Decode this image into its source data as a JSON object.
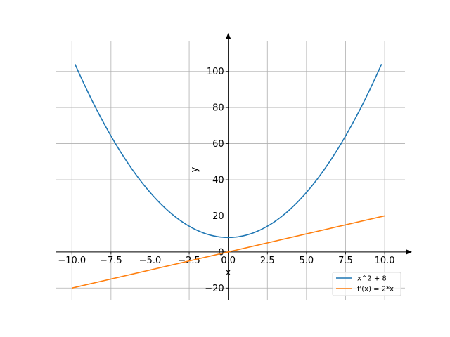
{
  "chart_data": {
    "type": "line",
    "xlabel": "x",
    "ylabel": "y",
    "xlim": [
      -11.0,
      11.3
    ],
    "ylim": [
      -26.5,
      117
    ],
    "grid": true,
    "legend_position": "bottom-right",
    "x_ticks": [
      -10.0,
      -7.5,
      -5.0,
      -2.5,
      0.0,
      2.5,
      5.0,
      7.5,
      10.0
    ],
    "x_tick_labels": [
      "−10.0",
      "−7.5",
      "−5.0",
      "−2.5",
      "0.0",
      "2.5",
      "5.0",
      "7.5",
      "10.0"
    ],
    "y_ticks": [
      -20,
      0,
      20,
      40,
      60,
      80,
      100
    ],
    "y_tick_labels": [
      "−20",
      "0",
      "20",
      "40",
      "60",
      "80",
      "100"
    ],
    "series": [
      {
        "name": "x^2 + 8",
        "color": "#1f77b4",
        "x": [
          -9.8,
          -9.0,
          -8.0,
          -7.0,
          -6.0,
          -5.0,
          -4.0,
          -3.0,
          -2.0,
          -1.0,
          0.0,
          1.0,
          2.0,
          3.0,
          4.0,
          5.0,
          6.0,
          7.0,
          8.0,
          9.0,
          9.8
        ],
        "y": [
          104.04,
          89.0,
          72.0,
          57.0,
          44.0,
          33.0,
          24.0,
          17.0,
          12.0,
          9.0,
          8.0,
          9.0,
          12.0,
          17.0,
          24.0,
          33.0,
          44.0,
          57.0,
          72.0,
          89.0,
          104.04
        ]
      },
      {
        "name": "f'(x) = 2*x",
        "color": "#ff7f0e",
        "x": [
          -10.0,
          10.0
        ],
        "y": [
          -20.0,
          20.0
        ]
      }
    ]
  }
}
